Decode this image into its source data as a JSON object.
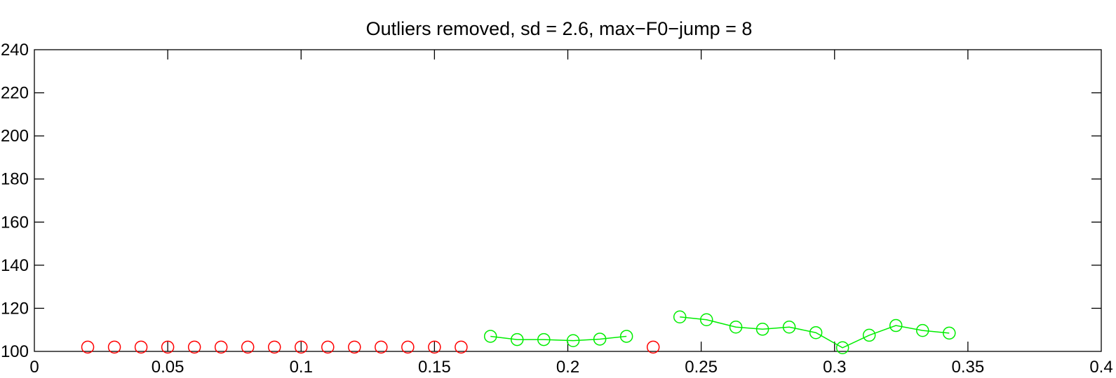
{
  "chart_data": {
    "type": "scatter",
    "title": "Outliers removed, sd = 2.6, max−F0−jump = 8",
    "xlabel": "",
    "ylabel": "",
    "xlim": [
      0,
      0.4
    ],
    "ylim": [
      100,
      240
    ],
    "x_ticks": [
      0,
      0.05,
      0.1,
      0.15,
      0.2,
      0.25,
      0.3,
      0.35,
      0.4
    ],
    "x_tick_labels": [
      "0",
      "0.05",
      "0.1",
      "0.15",
      "0.2",
      "0.25",
      "0.3",
      "0.35",
      "0.4"
    ],
    "y_ticks": [
      100,
      120,
      140,
      160,
      180,
      200,
      220,
      240
    ],
    "y_tick_labels": [
      "100",
      "120",
      "140",
      "160",
      "180",
      "200",
      "220",
      "240"
    ],
    "grid": false,
    "series": [
      {
        "style": "markers",
        "marker": "circle",
        "color": "#ff0000",
        "points": [
          [
            0.02,
            102
          ],
          [
            0.03,
            102
          ],
          [
            0.04,
            102
          ],
          [
            0.05,
            102
          ],
          [
            0.06,
            102
          ],
          [
            0.07,
            102
          ],
          [
            0.08,
            102
          ],
          [
            0.09,
            102
          ],
          [
            0.1,
            102
          ],
          [
            0.11,
            102
          ],
          [
            0.12,
            102
          ],
          [
            0.13,
            102
          ],
          [
            0.14,
            102
          ],
          [
            0.15,
            102
          ],
          [
            0.16,
            102
          ],
          [
            0.232,
            102
          ]
        ]
      },
      {
        "style": "line-markers",
        "marker": "circle",
        "color": "#00ee00",
        "points": [
          [
            0.171,
            107
          ],
          [
            0.181,
            105.5
          ],
          [
            0.191,
            105.5
          ],
          [
            0.202,
            105
          ],
          [
            0.212,
            105.7
          ],
          [
            0.222,
            107
          ]
        ]
      },
      {
        "style": "line-markers",
        "marker": "circle",
        "color": "#00ee00",
        "points": [
          [
            0.242,
            116
          ],
          [
            0.252,
            114.7
          ],
          [
            0.263,
            111.3
          ],
          [
            0.273,
            110.3
          ],
          [
            0.283,
            111.3
          ],
          [
            0.293,
            108.7
          ],
          [
            0.303,
            101.7
          ],
          [
            0.313,
            107.5
          ],
          [
            0.323,
            112
          ],
          [
            0.333,
            109.7
          ],
          [
            0.343,
            108.5
          ]
        ]
      }
    ]
  }
}
